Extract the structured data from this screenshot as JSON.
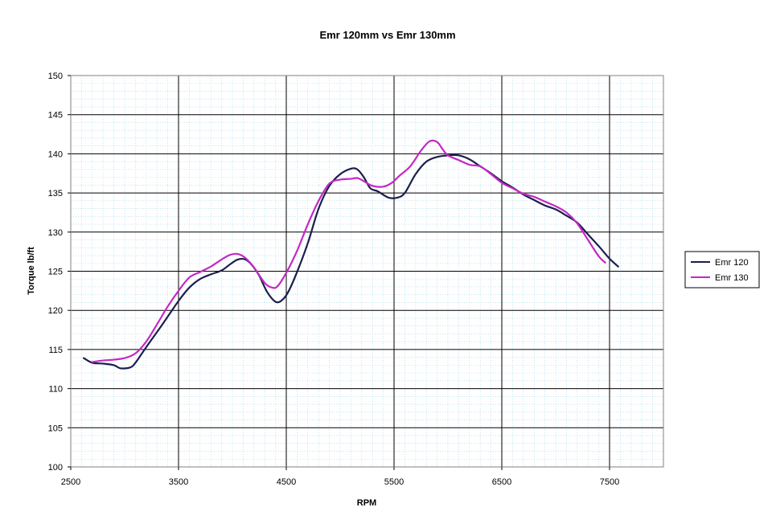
{
  "chart_data": {
    "type": "line",
    "title": "Emr 120mm vs Emr 130mm",
    "xlabel": "RPM",
    "ylabel": "Torque lb/ft",
    "xlim": [
      2500,
      8000
    ],
    "ylim": [
      100,
      150
    ],
    "x_ticks": [
      2500,
      3500,
      4500,
      5500,
      6500,
      7500
    ],
    "y_ticks": [
      100,
      105,
      110,
      115,
      120,
      125,
      130,
      135,
      140,
      145,
      150
    ],
    "grid": true,
    "legend_position": "right",
    "series": [
      {
        "name": "Emr 120",
        "color": "#1a1f4e",
        "points": [
          [
            2620,
            113.9
          ],
          [
            2700,
            113.3
          ],
          [
            2800,
            113.2
          ],
          [
            2900,
            113.0
          ],
          [
            2960,
            112.6
          ],
          [
            3050,
            112.7
          ],
          [
            3100,
            113.3
          ],
          [
            3200,
            115.3
          ],
          [
            3350,
            118.2
          ],
          [
            3500,
            121.2
          ],
          [
            3600,
            122.9
          ],
          [
            3700,
            124.0
          ],
          [
            3800,
            124.6
          ],
          [
            3900,
            125.1
          ],
          [
            3980,
            125.9
          ],
          [
            4050,
            126.5
          ],
          [
            4120,
            126.5
          ],
          [
            4180,
            125.8
          ],
          [
            4250,
            124.4
          ],
          [
            4320,
            122.4
          ],
          [
            4400,
            121.1
          ],
          [
            4460,
            121.3
          ],
          [
            4520,
            122.4
          ],
          [
            4600,
            124.9
          ],
          [
            4700,
            128.6
          ],
          [
            4800,
            133.0
          ],
          [
            4900,
            135.9
          ],
          [
            5000,
            137.4
          ],
          [
            5100,
            138.1
          ],
          [
            5160,
            138.0
          ],
          [
            5220,
            137.0
          ],
          [
            5280,
            135.6
          ],
          [
            5350,
            135.2
          ],
          [
            5450,
            134.4
          ],
          [
            5530,
            134.4
          ],
          [
            5600,
            135.0
          ],
          [
            5700,
            137.4
          ],
          [
            5800,
            139.0
          ],
          [
            5900,
            139.6
          ],
          [
            6000,
            139.8
          ],
          [
            6100,
            139.8
          ],
          [
            6200,
            139.3
          ],
          [
            6300,
            138.4
          ],
          [
            6400,
            137.5
          ],
          [
            6500,
            136.5
          ],
          [
            6600,
            135.7
          ],
          [
            6700,
            134.8
          ],
          [
            6800,
            134.1
          ],
          [
            6900,
            133.4
          ],
          [
            7000,
            132.9
          ],
          [
            7100,
            132.1
          ],
          [
            7200,
            131.2
          ],
          [
            7300,
            129.7
          ],
          [
            7400,
            128.2
          ],
          [
            7500,
            126.6
          ],
          [
            7580,
            125.6
          ]
        ]
      },
      {
        "name": "Emr 130",
        "color": "#c428c4",
        "points": [
          [
            2700,
            113.4
          ],
          [
            2800,
            113.6
          ],
          [
            2900,
            113.7
          ],
          [
            3000,
            113.9
          ],
          [
            3100,
            114.5
          ],
          [
            3200,
            116.0
          ],
          [
            3300,
            118.2
          ],
          [
            3400,
            120.5
          ],
          [
            3500,
            122.5
          ],
          [
            3600,
            124.2
          ],
          [
            3700,
            124.9
          ],
          [
            3800,
            125.6
          ],
          [
            3900,
            126.5
          ],
          [
            3980,
            127.1
          ],
          [
            4050,
            127.2
          ],
          [
            4120,
            126.7
          ],
          [
            4200,
            125.5
          ],
          [
            4300,
            123.5
          ],
          [
            4370,
            122.9
          ],
          [
            4420,
            123.1
          ],
          [
            4500,
            124.8
          ],
          [
            4600,
            127.6
          ],
          [
            4700,
            131.0
          ],
          [
            4800,
            134.0
          ],
          [
            4900,
            136.2
          ],
          [
            5000,
            136.7
          ],
          [
            5100,
            136.8
          ],
          [
            5160,
            136.9
          ],
          [
            5220,
            136.5
          ],
          [
            5300,
            135.9
          ],
          [
            5400,
            135.8
          ],
          [
            5480,
            136.3
          ],
          [
            5550,
            137.2
          ],
          [
            5650,
            138.4
          ],
          [
            5750,
            140.4
          ],
          [
            5830,
            141.6
          ],
          [
            5900,
            141.5
          ],
          [
            5950,
            140.6
          ],
          [
            6000,
            139.8
          ],
          [
            6100,
            139.2
          ],
          [
            6200,
            138.6
          ],
          [
            6300,
            138.4
          ],
          [
            6400,
            137.4
          ],
          [
            6500,
            136.3
          ],
          [
            6600,
            135.6
          ],
          [
            6700,
            134.9
          ],
          [
            6800,
            134.5
          ],
          [
            6900,
            133.9
          ],
          [
            7000,
            133.3
          ],
          [
            7100,
            132.5
          ],
          [
            7200,
            131.1
          ],
          [
            7300,
            129.0
          ],
          [
            7400,
            126.9
          ],
          [
            7460,
            126.1
          ]
        ]
      }
    ]
  }
}
